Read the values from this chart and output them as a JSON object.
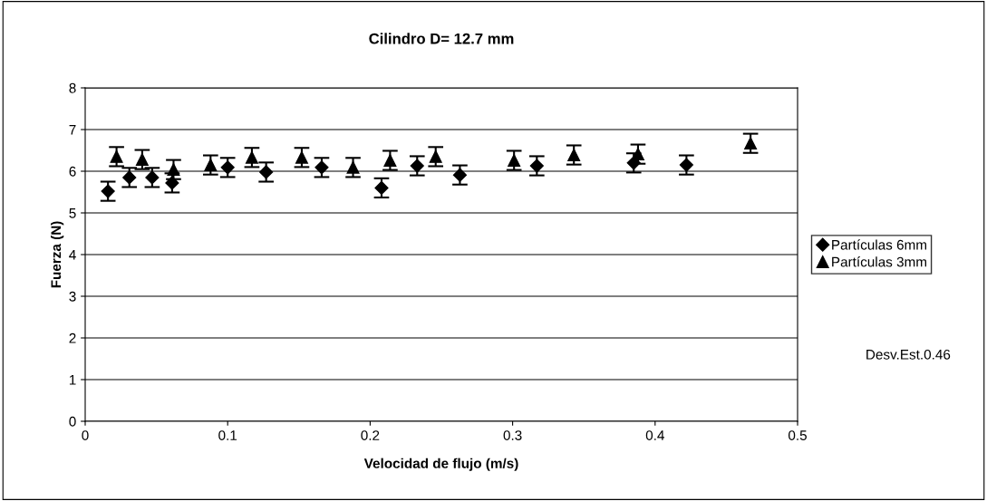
{
  "chart_data": {
    "type": "scatter",
    "title": "Cilindro D= 12.7 mm",
    "xlabel": "Velocidad de flujo (m/s)",
    "ylabel": "Fuerza (N)",
    "xlim": [
      0,
      0.5
    ],
    "xticks": [
      0,
      0.1,
      0.2,
      0.3,
      0.4,
      0.5
    ],
    "ylim": [
      0,
      8
    ],
    "yticks": [
      0,
      1,
      2,
      3,
      4,
      5,
      6,
      7,
      8
    ],
    "grid": "y",
    "legend": "right",
    "annotations": [
      "Desv.Est.0.46"
    ],
    "series": [
      {
        "name": "Partículas 6mm",
        "color": "#000000",
        "marker": "diamond",
        "x": [
          0.016,
          0.031,
          0.047,
          0.061,
          0.1,
          0.127,
          0.166,
          0.208,
          0.233,
          0.263,
          0.317,
          0.385,
          0.422
        ],
        "values": [
          5.52,
          5.85,
          5.85,
          5.72,
          6.09,
          5.98,
          6.09,
          5.6,
          6.13,
          5.91,
          6.13,
          6.2,
          6.15
        ],
        "errors": [
          0.23,
          0.23,
          0.23,
          0.23,
          0.23,
          0.23,
          0.23,
          0.23,
          0.23,
          0.23,
          0.23,
          0.23,
          0.23
        ]
      },
      {
        "name": "Partículas 3mm",
        "color": "#000000",
        "marker": "triangle",
        "x": [
          0.022,
          0.04,
          0.062,
          0.088,
          0.117,
          0.152,
          0.188,
          0.214,
          0.246,
          0.301,
          0.343,
          0.388,
          0.467
        ],
        "values": [
          6.35,
          6.28,
          6.04,
          6.15,
          6.33,
          6.33,
          6.09,
          6.26,
          6.35,
          6.26,
          6.39,
          6.41,
          6.67
        ],
        "errors": [
          0.23,
          0.23,
          0.23,
          0.23,
          0.23,
          0.23,
          0.23,
          0.23,
          0.23,
          0.23,
          0.23,
          0.23,
          0.23
        ]
      }
    ]
  }
}
